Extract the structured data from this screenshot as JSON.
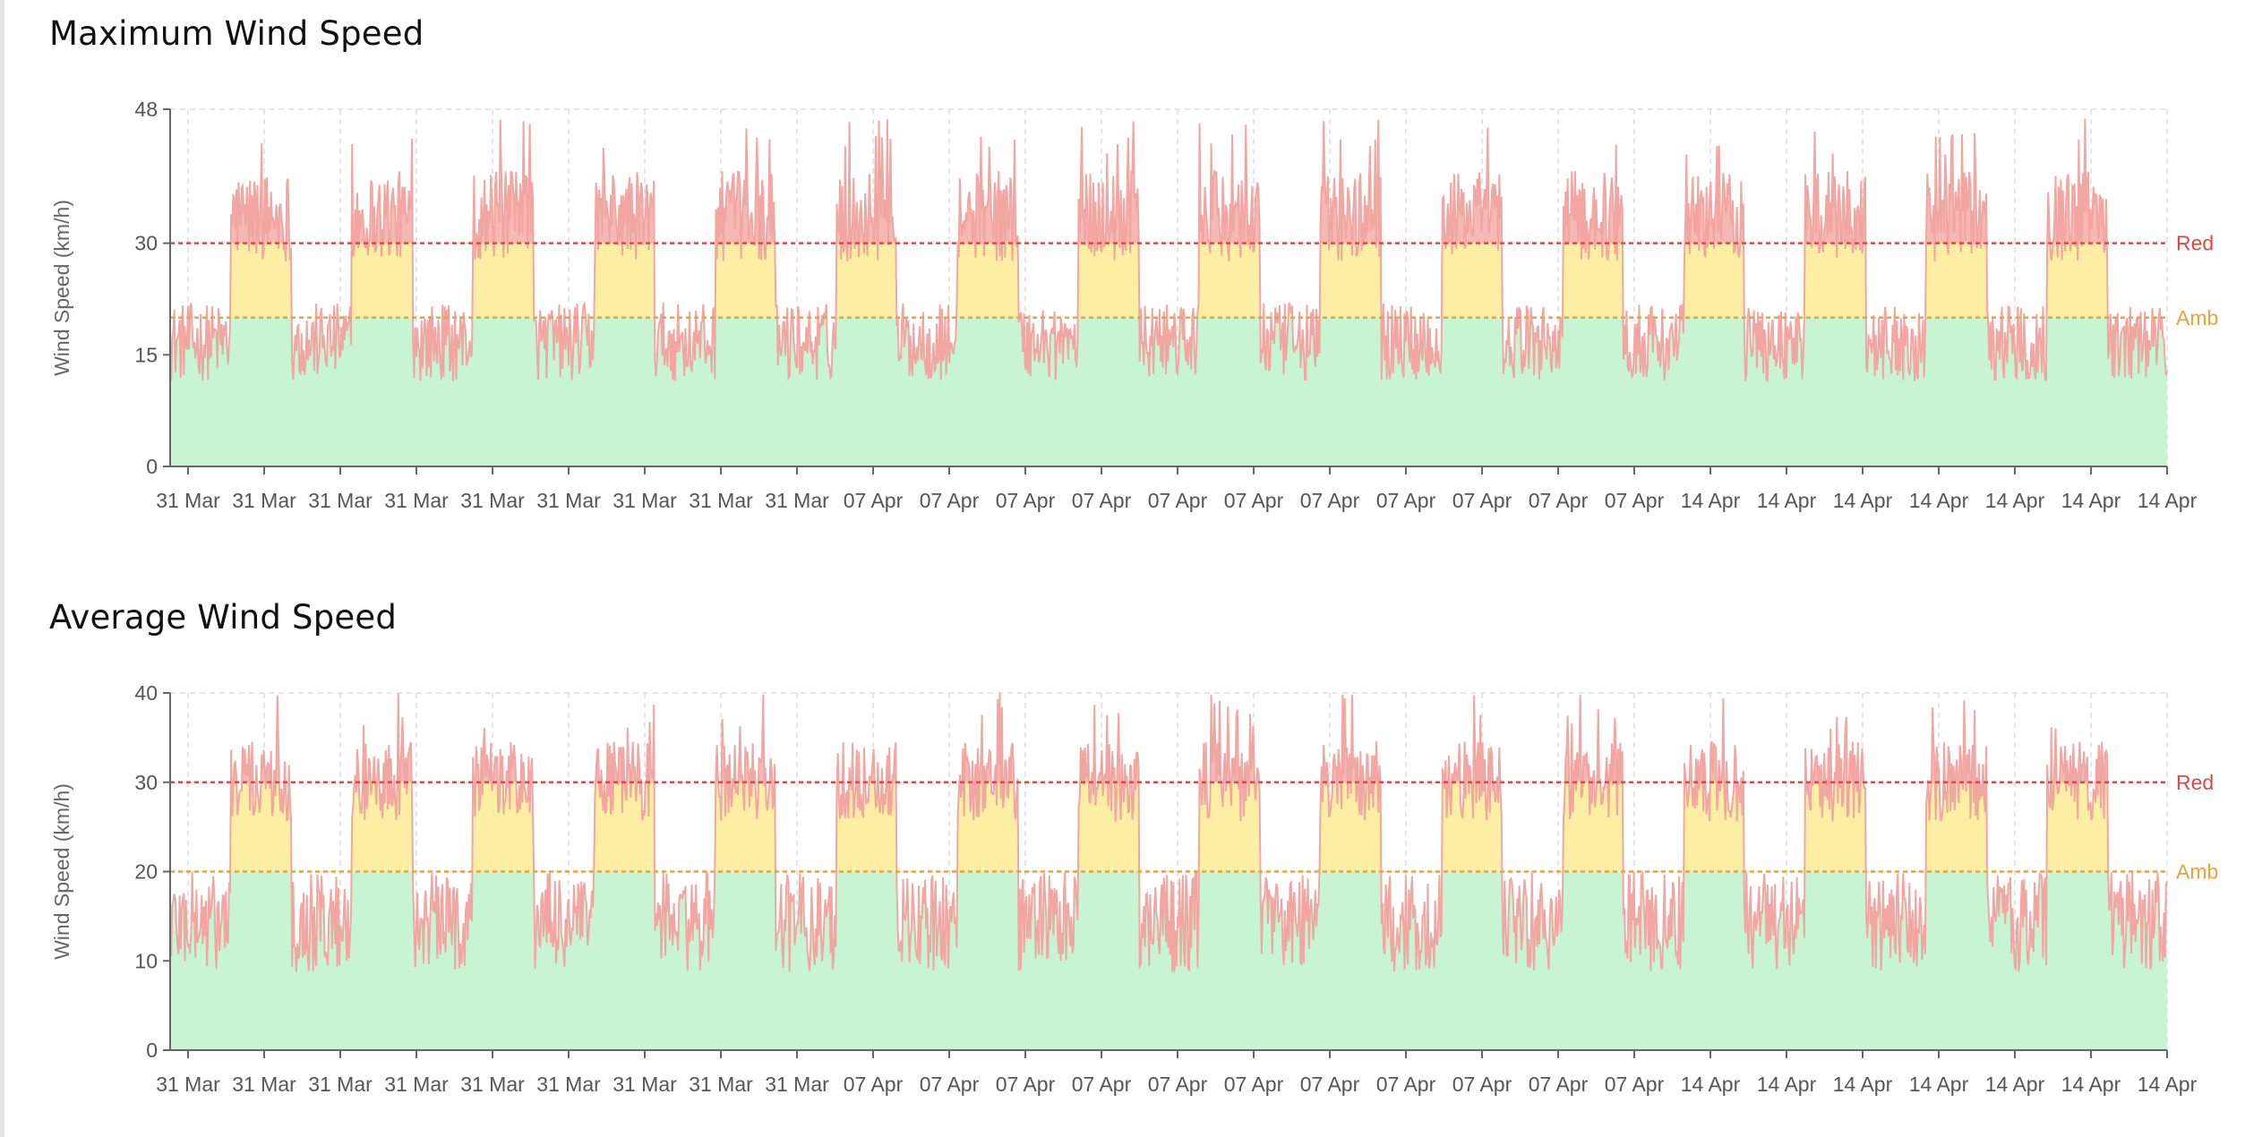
{
  "colors": {
    "green_zone": "#c7f5d2",
    "amber_zone": "#fdeea3",
    "red_zone": "#f5b8b5",
    "line": "#f2a6a1",
    "red_threshold": "#d94a4a",
    "amber_threshold": "#e8a43c",
    "grid": "#dddddd",
    "axis": "#666666"
  },
  "chart_data": [
    {
      "type": "area",
      "title": "Maximum Wind Speed",
      "ylabel": "Wind Speed (km/h)",
      "xlabel": "",
      "ylim": [
        0,
        48
      ],
      "yticks": [
        0,
        15,
        30,
        48
      ],
      "x_tick_labels": [
        "31 Mar",
        "31 Mar",
        "31 Mar",
        "31 Mar",
        "31 Mar",
        "31 Mar",
        "31 Mar",
        "31 Mar",
        "31 Mar",
        "07 Apr",
        "07 Apr",
        "07 Apr",
        "07 Apr",
        "07 Apr",
        "07 Apr",
        "07 Apr",
        "07 Apr",
        "07 Apr",
        "07 Apr",
        "07 Apr",
        "14 Apr",
        "14 Apr",
        "14 Apr",
        "14 Apr",
        "14 Apr",
        "14 Apr",
        "14 Apr"
      ],
      "thresholds": [
        {
          "label": "Red",
          "value": 30,
          "color": "#d94a4a"
        },
        {
          "label": "Amb",
          "value": 20,
          "color": "#e8a43c"
        }
      ],
      "grid": true,
      "legend": "none",
      "series": [
        {
          "shape": "diurnal cycle, 6-hourly segments",
          "high_segment_range": [
            20,
            47
          ],
          "low_segment_range": [
            8,
            22
          ],
          "segments_high_first_after": 1,
          "n_segments": 33
        }
      ]
    },
    {
      "type": "area",
      "title": "Average Wind Speed",
      "ylabel": "Wind Speed (km/h)",
      "xlabel": "",
      "ylim": [
        0,
        40
      ],
      "yticks": [
        0,
        10,
        20,
        30,
        40
      ],
      "x_tick_labels": [
        "31 Mar",
        "31 Mar",
        "31 Mar",
        "31 Mar",
        "31 Mar",
        "31 Mar",
        "31 Mar",
        "31 Mar",
        "31 Mar",
        "07 Apr",
        "07 Apr",
        "07 Apr",
        "07 Apr",
        "07 Apr",
        "07 Apr",
        "07 Apr",
        "07 Apr",
        "07 Apr",
        "07 Apr",
        "07 Apr",
        "14 Apr",
        "14 Apr",
        "14 Apr",
        "14 Apr",
        "14 Apr",
        "14 Apr",
        "14 Apr"
      ],
      "thresholds": [
        {
          "label": "Red",
          "value": 30,
          "color": "#d94a4a"
        },
        {
          "label": "Amb",
          "value": 20,
          "color": "#e8a43c"
        }
      ],
      "grid": true,
      "legend": "none",
      "series": [
        {
          "shape": "diurnal cycle, 6-hourly segments",
          "high_segment_range": [
            20,
            40
          ],
          "low_segment_range": [
            5,
            20
          ],
          "segments_high_first_after": 1,
          "n_segments": 33
        }
      ]
    }
  ]
}
